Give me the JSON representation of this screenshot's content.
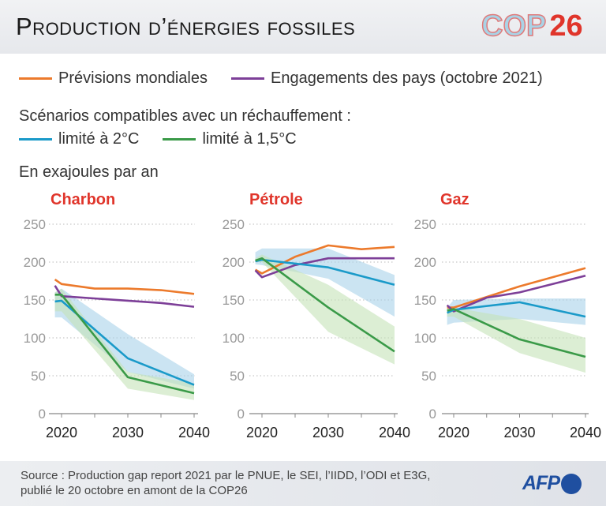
{
  "header": {
    "title": "Production d’énergies fossiles",
    "logo_text": "COP",
    "logo_number": "26"
  },
  "legend": {
    "forecast": "Prévisions mondiales",
    "pledges": "Engagements des pays (octobre 2021)",
    "scenarios_heading": "Scénarios compatibles avec un réchauffement :",
    "limit2": "limité à 2°C",
    "limit15": "limité à 1,5°C"
  },
  "unit_note": "En exajoules par an",
  "colors": {
    "forecast": "#ec7a2c",
    "pledges": "#7d3f98",
    "limit2": "#1a9ac9",
    "limit15": "#3a9a48",
    "band2": "#a9d2ea",
    "band15": "#c5e2b8",
    "panel_title": "#e0352b"
  },
  "footer": {
    "source_line1": "Source : Production gap report 2021 par le PNUE, le SEI, l’IIDD, l’ODI et E3G,",
    "source_line2": "publié le 20 octobre en amont de la COP26",
    "logo": "AFP"
  },
  "chart_data": [
    {
      "type": "line",
      "title": "Charbon",
      "xlim": [
        2019,
        2040
      ],
      "ylim": [
        0,
        250
      ],
      "yticks": [
        0,
        50,
        100,
        150,
        200,
        250
      ],
      "xticks": [
        2020,
        2030,
        2040
      ],
      "grid": true,
      "series": [
        {
          "name": "Prévisions mondiales",
          "key": "forecast",
          "x": [
            2019,
            2020,
            2025,
            2030,
            2035,
            2040
          ],
          "y": [
            177,
            171,
            165,
            165,
            163,
            158
          ]
        },
        {
          "name": "Engagements des pays (octobre 2021)",
          "key": "pledges",
          "x": [
            2019,
            2020,
            2030,
            2035,
            2040
          ],
          "y": [
            169,
            155,
            149,
            146,
            141
          ]
        },
        {
          "name": "limité à 2°C",
          "key": "limit2",
          "x": [
            2019,
            2020,
            2030,
            2040
          ],
          "y": [
            148,
            149,
            73,
            38
          ],
          "band_upper": [
            160,
            165,
            105,
            52
          ],
          "band_lower": [
            127,
            127,
            55,
            33
          ]
        },
        {
          "name": "limité à 1,5°C",
          "key": "limit15",
          "x": [
            2019,
            2020,
            2030,
            2040
          ],
          "y": [
            157,
            157,
            48,
            27
          ],
          "band_upper": [
            160,
            165,
            55,
            40
          ],
          "band_lower": [
            135,
            135,
            33,
            18
          ]
        }
      ]
    },
    {
      "type": "line",
      "title": "Pétrole",
      "xlim": [
        2019,
        2040
      ],
      "ylim": [
        0,
        250
      ],
      "yticks": [
        0,
        50,
        100,
        150,
        200,
        250
      ],
      "xticks": [
        2020,
        2030,
        2040
      ],
      "grid": true,
      "series": [
        {
          "name": "Prévisions mondiales",
          "key": "forecast",
          "x": [
            2019,
            2020,
            2025,
            2030,
            2035,
            2040
          ],
          "y": [
            190,
            185,
            207,
            222,
            217,
            220
          ]
        },
        {
          "name": "Engagements des pays (octobre 2021)",
          "key": "pledges",
          "x": [
            2019,
            2020,
            2025,
            2030,
            2040
          ],
          "y": [
            189,
            180,
            196,
            205,
            205
          ]
        },
        {
          "name": "limité à 2°C",
          "key": "limit2",
          "x": [
            2019,
            2020,
            2030,
            2040
          ],
          "y": [
            201,
            203,
            193,
            170
          ],
          "band_upper": [
            213,
            218,
            218,
            183
          ],
          "band_lower": [
            197,
            196,
            178,
            128
          ]
        },
        {
          "name": "limité à 1,5°C",
          "key": "limit15",
          "x": [
            2019,
            2020,
            2030,
            2040
          ],
          "y": [
            202,
            205,
            140,
            82
          ],
          "band_upper": [
            205,
            210,
            170,
            115
          ],
          "band_lower": [
            200,
            200,
            108,
            65
          ]
        }
      ]
    },
    {
      "type": "line",
      "title": "Gaz",
      "xlim": [
        2019,
        2040
      ],
      "ylim": [
        0,
        250
      ],
      "yticks": [
        0,
        50,
        100,
        150,
        200,
        250
      ],
      "xticks": [
        2020,
        2030,
        2040
      ],
      "grid": true,
      "series": [
        {
          "name": "Prévisions mondiales",
          "key": "forecast",
          "x": [
            2019,
            2020,
            2030,
            2040
          ],
          "y": [
            140,
            140,
            168,
            192
          ]
        },
        {
          "name": "Engagements des pays (octobre 2021)",
          "key": "pledges",
          "x": [
            2019,
            2020,
            2025,
            2030,
            2040
          ],
          "y": [
            143,
            135,
            153,
            160,
            182
          ]
        },
        {
          "name": "limité à 2°C",
          "key": "limit2",
          "x": [
            2019,
            2020,
            2030,
            2040
          ],
          "y": [
            133,
            137,
            147,
            128
          ],
          "band_upper": [
            140,
            150,
            152,
            152
          ],
          "band_lower": [
            117,
            120,
            125,
            117
          ]
        },
        {
          "name": "limité à 1,5°C",
          "key": "limit15",
          "x": [
            2019,
            2020,
            2030,
            2040
          ],
          "y": [
            136,
            138,
            98,
            75
          ],
          "band_upper": [
            140,
            140,
            125,
            100
          ],
          "band_lower": [
            128,
            128,
            80,
            54
          ]
        }
      ]
    }
  ]
}
